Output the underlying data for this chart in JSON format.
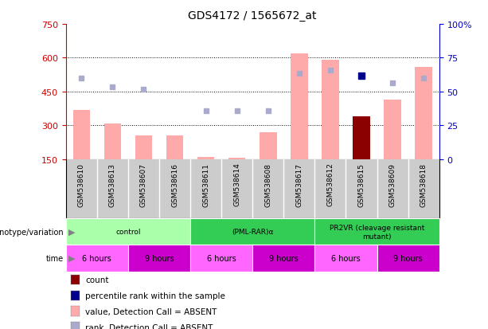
{
  "title": "GDS4172 / 1565672_at",
  "samples": [
    "GSM538610",
    "GSM538613",
    "GSM538607",
    "GSM538616",
    "GSM538611",
    "GSM538614",
    "GSM538608",
    "GSM538617",
    "GSM538612",
    "GSM538615",
    "GSM538609",
    "GSM538618"
  ],
  "bar_values": [
    370,
    310,
    255,
    255,
    160,
    155,
    270,
    620,
    590,
    340,
    415,
    560
  ],
  "bar_colors": [
    "#ffaaaa",
    "#ffaaaa",
    "#ffaaaa",
    "#ffaaaa",
    "#ffaaaa",
    "#ffaaaa",
    "#ffaaaa",
    "#ffaaaa",
    "#ffaaaa",
    "#8b0000",
    "#ffaaaa",
    "#ffaaaa"
  ],
  "rank_dots": [
    510,
    470,
    460,
    null,
    365,
    365,
    365,
    530,
    545,
    null,
    490,
    510
  ],
  "rank_dot_colors": [
    "#aaaacc",
    "#aaaacc",
    "#aaaacc",
    null,
    "#aaaacc",
    "#aaaacc",
    "#aaaacc",
    "#aaaacc",
    "#aaaacc",
    null,
    "#aaaacc",
    "#aaaacc"
  ],
  "pct_dots": [
    null,
    null,
    null,
    null,
    null,
    null,
    null,
    null,
    null,
    520,
    null,
    null
  ],
  "pct_dot_color": "#00008b",
  "ylim_left": [
    150,
    750
  ],
  "ylim_right": [
    0,
    100
  ],
  "left_ticks": [
    150,
    300,
    450,
    600,
    750
  ],
  "right_ticks": [
    0,
    25,
    50,
    75,
    100
  ],
  "right_tick_labels": [
    "0",
    "25",
    "50",
    "75",
    "100%"
  ],
  "grid_values": [
    300,
    450,
    600
  ],
  "group_defs": [
    {
      "label": "control",
      "start": 0,
      "end": 3,
      "color": "#aaffaa"
    },
    {
      "label": "(PML-RAR)α",
      "start": 4,
      "end": 7,
      "color": "#33cc55"
    },
    {
      "label": "PR2VR (cleavage resistant\nmutant)",
      "start": 8,
      "end": 11,
      "color": "#33cc55"
    }
  ],
  "time_defs": [
    {
      "label": "6 hours",
      "start": 0,
      "end": 1,
      "color": "#ff66ff"
    },
    {
      "label": "9 hours",
      "start": 2,
      "end": 3,
      "color": "#cc00cc"
    },
    {
      "label": "6 hours",
      "start": 4,
      "end": 5,
      "color": "#ff66ff"
    },
    {
      "label": "9 hours",
      "start": 6,
      "end": 7,
      "color": "#cc00cc"
    },
    {
      "label": "6 hours",
      "start": 8,
      "end": 9,
      "color": "#ff66ff"
    },
    {
      "label": "9 hours",
      "start": 10,
      "end": 11,
      "color": "#cc00cc"
    }
  ],
  "legend_items": [
    {
      "color": "#8b0000",
      "label": "count"
    },
    {
      "color": "#00008b",
      "label": "percentile rank within the sample"
    },
    {
      "color": "#ffaaaa",
      "label": "value, Detection Call = ABSENT"
    },
    {
      "color": "#aaaacc",
      "label": "rank, Detection Call = ABSENT"
    }
  ],
  "left_axis_color": "#cc0000",
  "right_axis_color": "#0000cc",
  "sample_area_color": "#cccccc",
  "bg_color": "#ffffff"
}
